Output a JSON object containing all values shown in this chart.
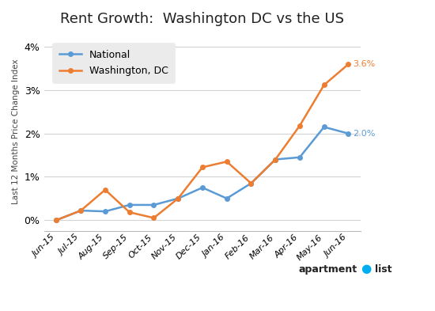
{
  "title": "Rent Growth:  Washington DC vs the US",
  "ylabel": "Last 12 Months Price Change Index",
  "categories": [
    "Jun-15",
    "Jul-15",
    "Aug-15",
    "Sep-15",
    "Oct-15",
    "Nov-15",
    "Dec-15",
    "Jan-16",
    "Feb-16",
    "Mar-16",
    "Apr-16",
    "May-16",
    "Jun-16"
  ],
  "national": [
    0.0,
    0.22,
    0.2,
    0.35,
    0.35,
    0.5,
    0.75,
    0.5,
    0.85,
    1.4,
    1.45,
    2.15,
    2.0
  ],
  "dc": [
    0.0,
    0.22,
    0.7,
    0.18,
    0.05,
    0.5,
    1.22,
    1.35,
    0.85,
    1.4,
    2.18,
    3.12,
    3.6
  ],
  "national_color": "#5B9BD5",
  "dc_color": "#ED7D31",
  "national_label": "National",
  "dc_label": "Washington, DC",
  "national_end_label": "2.0%",
  "dc_end_label": "3.6%",
  "bg_color": "#FFFFFF",
  "grid_color": "#D3D3D3",
  "legend_bg": "#EBEBEB",
  "title_fontsize": 13,
  "axis_fontsize": 8,
  "annotation_fontsize": 8
}
